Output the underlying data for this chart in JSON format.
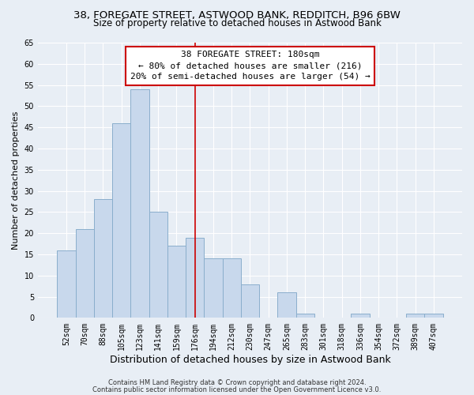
{
  "title1": "38, FOREGATE STREET, ASTWOOD BANK, REDDITCH, B96 6BW",
  "title2": "Size of property relative to detached houses in Astwood Bank",
  "xlabel": "Distribution of detached houses by size in Astwood Bank",
  "ylabel": "Number of detached properties",
  "footer1": "Contains HM Land Registry data © Crown copyright and database right 2024.",
  "footer2": "Contains public sector information licensed under the Open Government Licence v3.0.",
  "bar_labels": [
    "52sqm",
    "70sqm",
    "88sqm",
    "105sqm",
    "123sqm",
    "141sqm",
    "159sqm",
    "176sqm",
    "194sqm",
    "212sqm",
    "230sqm",
    "247sqm",
    "265sqm",
    "283sqm",
    "301sqm",
    "318sqm",
    "336sqm",
    "354sqm",
    "372sqm",
    "389sqm",
    "407sqm"
  ],
  "bar_values": [
    16,
    21,
    28,
    46,
    54,
    25,
    17,
    19,
    14,
    14,
    8,
    0,
    6,
    1,
    0,
    0,
    1,
    0,
    0,
    1,
    1
  ],
  "bar_color": "#c8d8ec",
  "bar_edge_color": "#8aaecc",
  "vline_x_idx": 7,
  "vline_color": "#cc0000",
  "annotation_line1": "38 FOREGATE STREET: 180sqm",
  "annotation_line2": "← 80% of detached houses are smaller (216)",
  "annotation_line3": "20% of semi-detached houses are larger (54) →",
  "ylim": [
    0,
    65
  ],
  "yticks": [
    0,
    5,
    10,
    15,
    20,
    25,
    30,
    35,
    40,
    45,
    50,
    55,
    60,
    65
  ],
  "background_color": "#e8eef5",
  "grid_color": "#ffffff",
  "title1_fontsize": 9.5,
  "title2_fontsize": 8.5,
  "xlabel_fontsize": 9,
  "ylabel_fontsize": 8,
  "tick_fontsize": 7,
  "footer_fontsize": 6,
  "annotation_fontsize": 8
}
